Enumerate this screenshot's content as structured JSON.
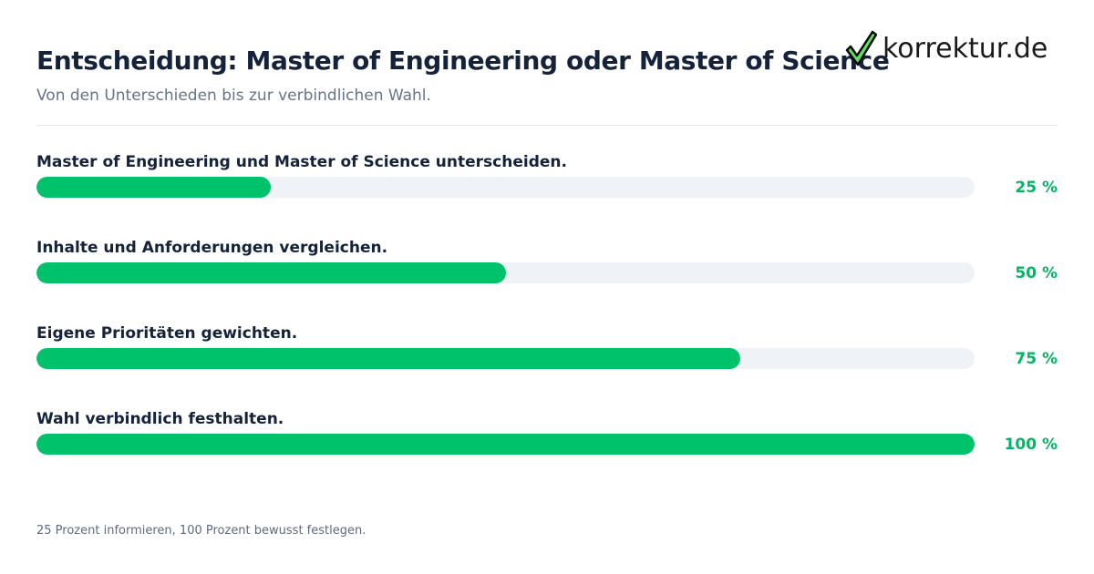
{
  "header": {
    "title": "Entscheidung: Master of Engineering oder Master of Science",
    "subtitle": "Von den Unterschieden bis zur verbindlichen Wahl."
  },
  "logo": {
    "text": "korrektur.de",
    "icon": "checkmark-icon",
    "check_color": "#33cc33"
  },
  "steps": [
    {
      "label": "Master of Engineering und Master of Science unterscheiden.",
      "percent_label": "25 %",
      "progress": 25
    },
    {
      "label": "Inhalte und Anforderungen vergleichen.",
      "percent_label": "50 %",
      "progress": 50
    },
    {
      "label": "Eigene Prioritäten gewichten.",
      "percent_label": "75 %",
      "progress": 75
    },
    {
      "label": "Wahl verbindlich festhalten.",
      "percent_label": "100 %",
      "progress": 100
    }
  ],
  "footer": {
    "note": "25 Prozent informieren, 100 Prozent bewusst festlegen."
  },
  "colors": {
    "accent": "#00c26b",
    "track": "#eff3f8",
    "title": "#14233b",
    "subtitle": "#65748b"
  }
}
